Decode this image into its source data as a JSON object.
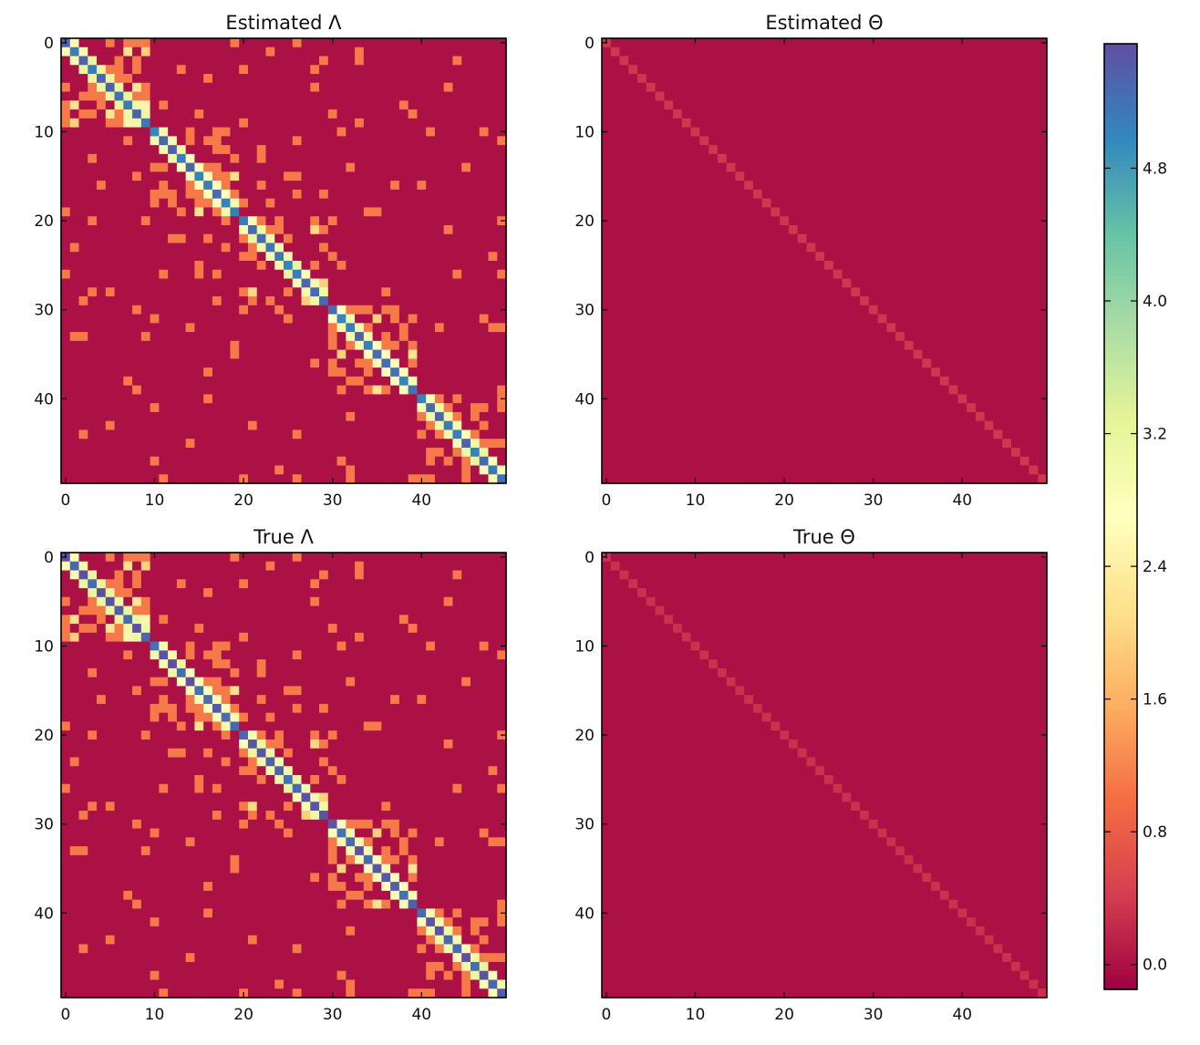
{
  "chart_data": [
    {
      "type": "heatmap",
      "title": "Estimated Λ",
      "matrix_size": 50,
      "x_ticks": [
        0,
        10,
        20,
        30,
        40
      ],
      "y_ticks": [
        0,
        10,
        20,
        30,
        40
      ],
      "xlim": [
        -0.5,
        49.5
      ],
      "ylim": [
        49.5,
        -0.5
      ],
      "diagonal_value": 5.2,
      "block_value": 1.1,
      "blocks": [
        [
          0,
          9
        ],
        [
          10,
          19
        ],
        [
          20,
          29
        ],
        [
          30,
          39
        ],
        [
          40,
          49
        ]
      ],
      "off_block_value": 1.1,
      "background_value": 0.0,
      "colormap": "Spectral"
    },
    {
      "type": "heatmap",
      "title": "Estimated Θ",
      "matrix_size": 50,
      "x_ticks": [
        0,
        10,
        20,
        30,
        40
      ],
      "y_ticks": [
        0,
        10,
        20,
        30,
        40
      ],
      "xlim": [
        -0.5,
        49.5
      ],
      "ylim": [
        49.5,
        -0.5
      ],
      "diagonal_value": 0.35,
      "background_value": 0.0,
      "colormap": "Spectral"
    },
    {
      "type": "heatmap",
      "title": "True Λ",
      "matrix_size": 50,
      "x_ticks": [
        0,
        10,
        20,
        30,
        40
      ],
      "y_ticks": [
        0,
        10,
        20,
        30,
        40
      ],
      "xlim": [
        -0.5,
        49.5
      ],
      "ylim": [
        49.5,
        -0.5
      ],
      "diagonal_value": 5.4,
      "block_value": 1.1,
      "blocks": [
        [
          0,
          9
        ],
        [
          10,
          19
        ],
        [
          20,
          29
        ],
        [
          30,
          39
        ],
        [
          40,
          49
        ]
      ],
      "off_block_value": 1.1,
      "background_value": 0.0,
      "colormap": "Spectral"
    },
    {
      "type": "heatmap",
      "title": "True Θ",
      "matrix_size": 50,
      "x_ticks": [
        0,
        10,
        20,
        30,
        40
      ],
      "y_ticks": [
        0,
        10,
        20,
        30,
        40
      ],
      "xlim": [
        -0.5,
        49.5
      ],
      "ylim": [
        49.5,
        -0.5
      ],
      "diagonal_value": 0.3,
      "background_value": 0.0,
      "colormap": "Spectral"
    }
  ],
  "colorbar": {
    "ticks": [
      0.0,
      0.8,
      1.6,
      2.4,
      3.2,
      4.0,
      4.8
    ],
    "tick_labels": [
      "0.0",
      "0.8",
      "1.6",
      "2.4",
      "3.2",
      "4.0",
      "4.8"
    ],
    "vmin": -0.15,
    "vmax": 5.55,
    "colormap": "Spectral"
  },
  "colors": {
    "spectral_stops": [
      "#9e0142",
      "#d53e4f",
      "#f46d43",
      "#fdae61",
      "#fee08b",
      "#ffffbf",
      "#e6f598",
      "#abdda4",
      "#66c2a5",
      "#3288bd",
      "#5e4fa2"
    ]
  }
}
